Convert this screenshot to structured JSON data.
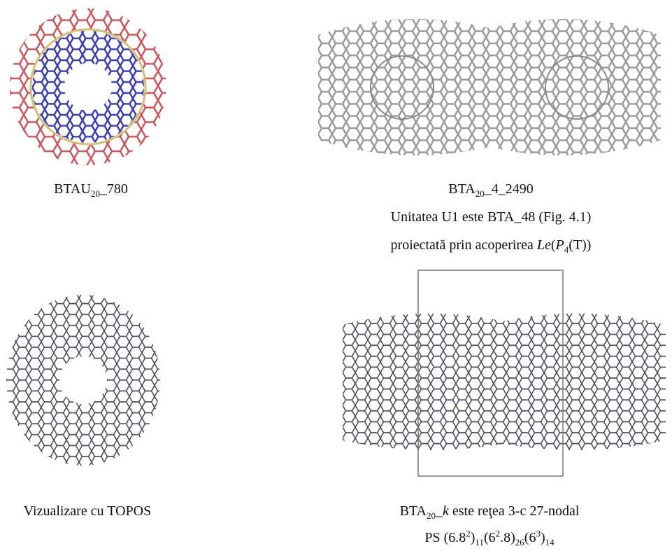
{
  "panels": [
    {
      "caption": [
        [
          {
            "text": "BTAU"
          },
          {
            "text": "20",
            "style": "sub"
          },
          {
            "text": "_780"
          }
        ]
      ]
    },
    {
      "caption": [
        [
          {
            "text": "BTA"
          },
          {
            "text": "20",
            "style": "sub"
          },
          {
            "text": "_4_2490"
          }
        ],
        [
          {
            "text": "Unitatea U1 este BTA_48 (Fig. 4.1)"
          }
        ],
        [
          {
            "text": "proiectată prin acoperirea "
          },
          {
            "text": "Le",
            "style": "italic"
          },
          {
            "text": "("
          },
          {
            "text": "P",
            "style": "italic"
          },
          {
            "text": "4",
            "style": "sub"
          },
          {
            "text": "(T))"
          }
        ]
      ]
    },
    {
      "caption": [
        [
          {
            "text": "Vizualizare cu TOPOS"
          }
        ]
      ]
    },
    {
      "caption": [
        [
          {
            "text": "BTA"
          },
          {
            "text": "20",
            "style": "sub"
          },
          {
            "text": "_"
          },
          {
            "text": "k",
            "style": "italic"
          },
          {
            "text": " este reţea 3-c 27-nodal"
          }
        ],
        [
          {
            "text": "PS (6.8"
          },
          {
            "text": "2",
            "style": "sup"
          },
          {
            "text": ")"
          },
          {
            "text": "11",
            "style": "sub"
          },
          {
            "text": "(6"
          },
          {
            "text": "2",
            "style": "sup"
          },
          {
            "text": ".8)"
          },
          {
            "text": "26",
            "style": "sub"
          },
          {
            "text": "(6"
          },
          {
            "text": "3",
            "style": "sup"
          },
          {
            "text": ")"
          },
          {
            "text": "14",
            "style": "sub"
          }
        ]
      ]
    }
  ]
}
